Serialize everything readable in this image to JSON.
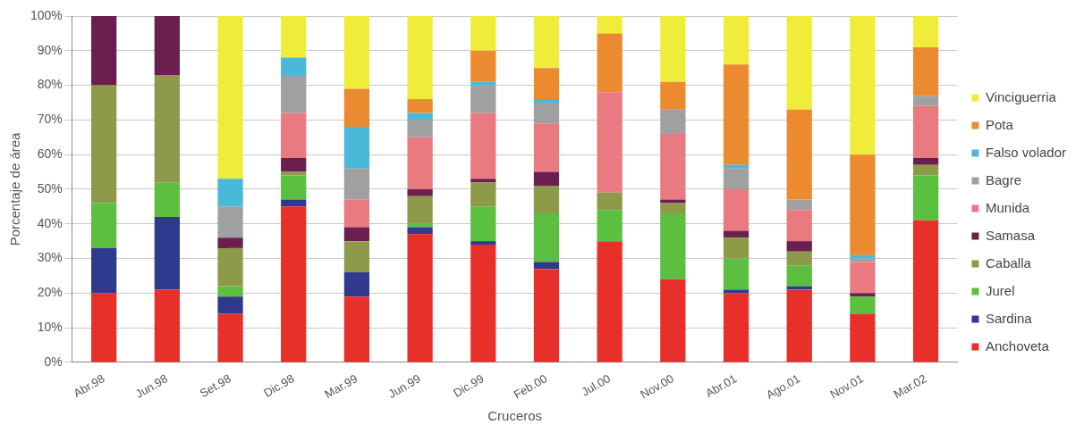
{
  "chart_data": {
    "type": "bar",
    "stacked": true,
    "xlabel": "Cruceros",
    "ylabel": "Porcentaje de área",
    "categories": [
      "Abr.98",
      "Jun.98",
      "Set.98",
      "Dic.98",
      "Mar.99",
      "Jun.99",
      "Dic.99",
      "Feb.00",
      "Jul.00",
      "Nov.00",
      "Abr.01",
      "Ago.01",
      "Nov.01",
      "Mar.02"
    ],
    "series": [
      {
        "name": "Anchoveta",
        "color": "#e8302a",
        "values": [
          20,
          21,
          14,
          45,
          19,
          37,
          34,
          27,
          35,
          24,
          20,
          21,
          14,
          41
        ]
      },
      {
        "name": "Sardina",
        "color": "#2f3a8f",
        "values": [
          13,
          21,
          5,
          2,
          7,
          2,
          1,
          2,
          0,
          0,
          1,
          1,
          0,
          0
        ]
      },
      {
        "name": "Jurel",
        "color": "#5cbf3f",
        "values": [
          13,
          10,
          3,
          7,
          0,
          1,
          10,
          14,
          9,
          19,
          9,
          6,
          5,
          13
        ]
      },
      {
        "name": "Caballa",
        "color": "#8c9a4a",
        "values": [
          34,
          31,
          11,
          1,
          9,
          8,
          7,
          8,
          5,
          3,
          6,
          4,
          0,
          3
        ]
      },
      {
        "name": "Samasa",
        "color": "#6b1f4f",
        "values": [
          20,
          17,
          3,
          4,
          4,
          2,
          1,
          4,
          0,
          1,
          2,
          3,
          1,
          2
        ]
      },
      {
        "name": "Munida",
        "color": "#e87a80",
        "values": [
          0,
          0,
          0,
          13,
          8,
          15,
          19,
          14,
          29,
          19,
          12,
          9,
          9,
          15
        ]
      },
      {
        "name": "Bagre",
        "color": "#a0a0a0",
        "values": [
          0,
          0,
          9,
          11,
          9,
          5,
          8,
          6,
          0,
          7,
          6,
          3,
          1,
          3
        ]
      },
      {
        "name": "Falso volador",
        "color": "#4ab8d8",
        "values": [
          0,
          0,
          8,
          5,
          12,
          2,
          1,
          1,
          0,
          0,
          1,
          0,
          1,
          0
        ]
      },
      {
        "name": "Pota",
        "color": "#ec8a30",
        "values": [
          0,
          0,
          0,
          0,
          11,
          4,
          9,
          9,
          17,
          8,
          29,
          26,
          29,
          14
        ]
      },
      {
        "name": "Vinciguerria",
        "color": "#f0ec3a",
        "values": [
          0,
          0,
          47,
          12,
          21,
          24,
          10,
          15,
          5,
          19,
          14,
          27,
          40,
          9
        ]
      }
    ],
    "ylim": [
      0,
      100
    ],
    "yticks": [
      {
        "value": 0,
        "label": "0%"
      },
      {
        "value": 10,
        "label": "10%"
      },
      {
        "value": 20,
        "label": "20%"
      },
      {
        "value": 30,
        "label": "30%"
      },
      {
        "value": 40,
        "label": "40%"
      },
      {
        "value": 50,
        "label": "50%"
      },
      {
        "value": 60,
        "label": "60%"
      },
      {
        "value": 70,
        "label": "70%"
      },
      {
        "value": 80,
        "label": "80%"
      },
      {
        "value": 90,
        "label": "90%"
      },
      {
        "value": 100,
        "label": "100%"
      }
    ],
    "grid": "y",
    "legend": "right"
  }
}
